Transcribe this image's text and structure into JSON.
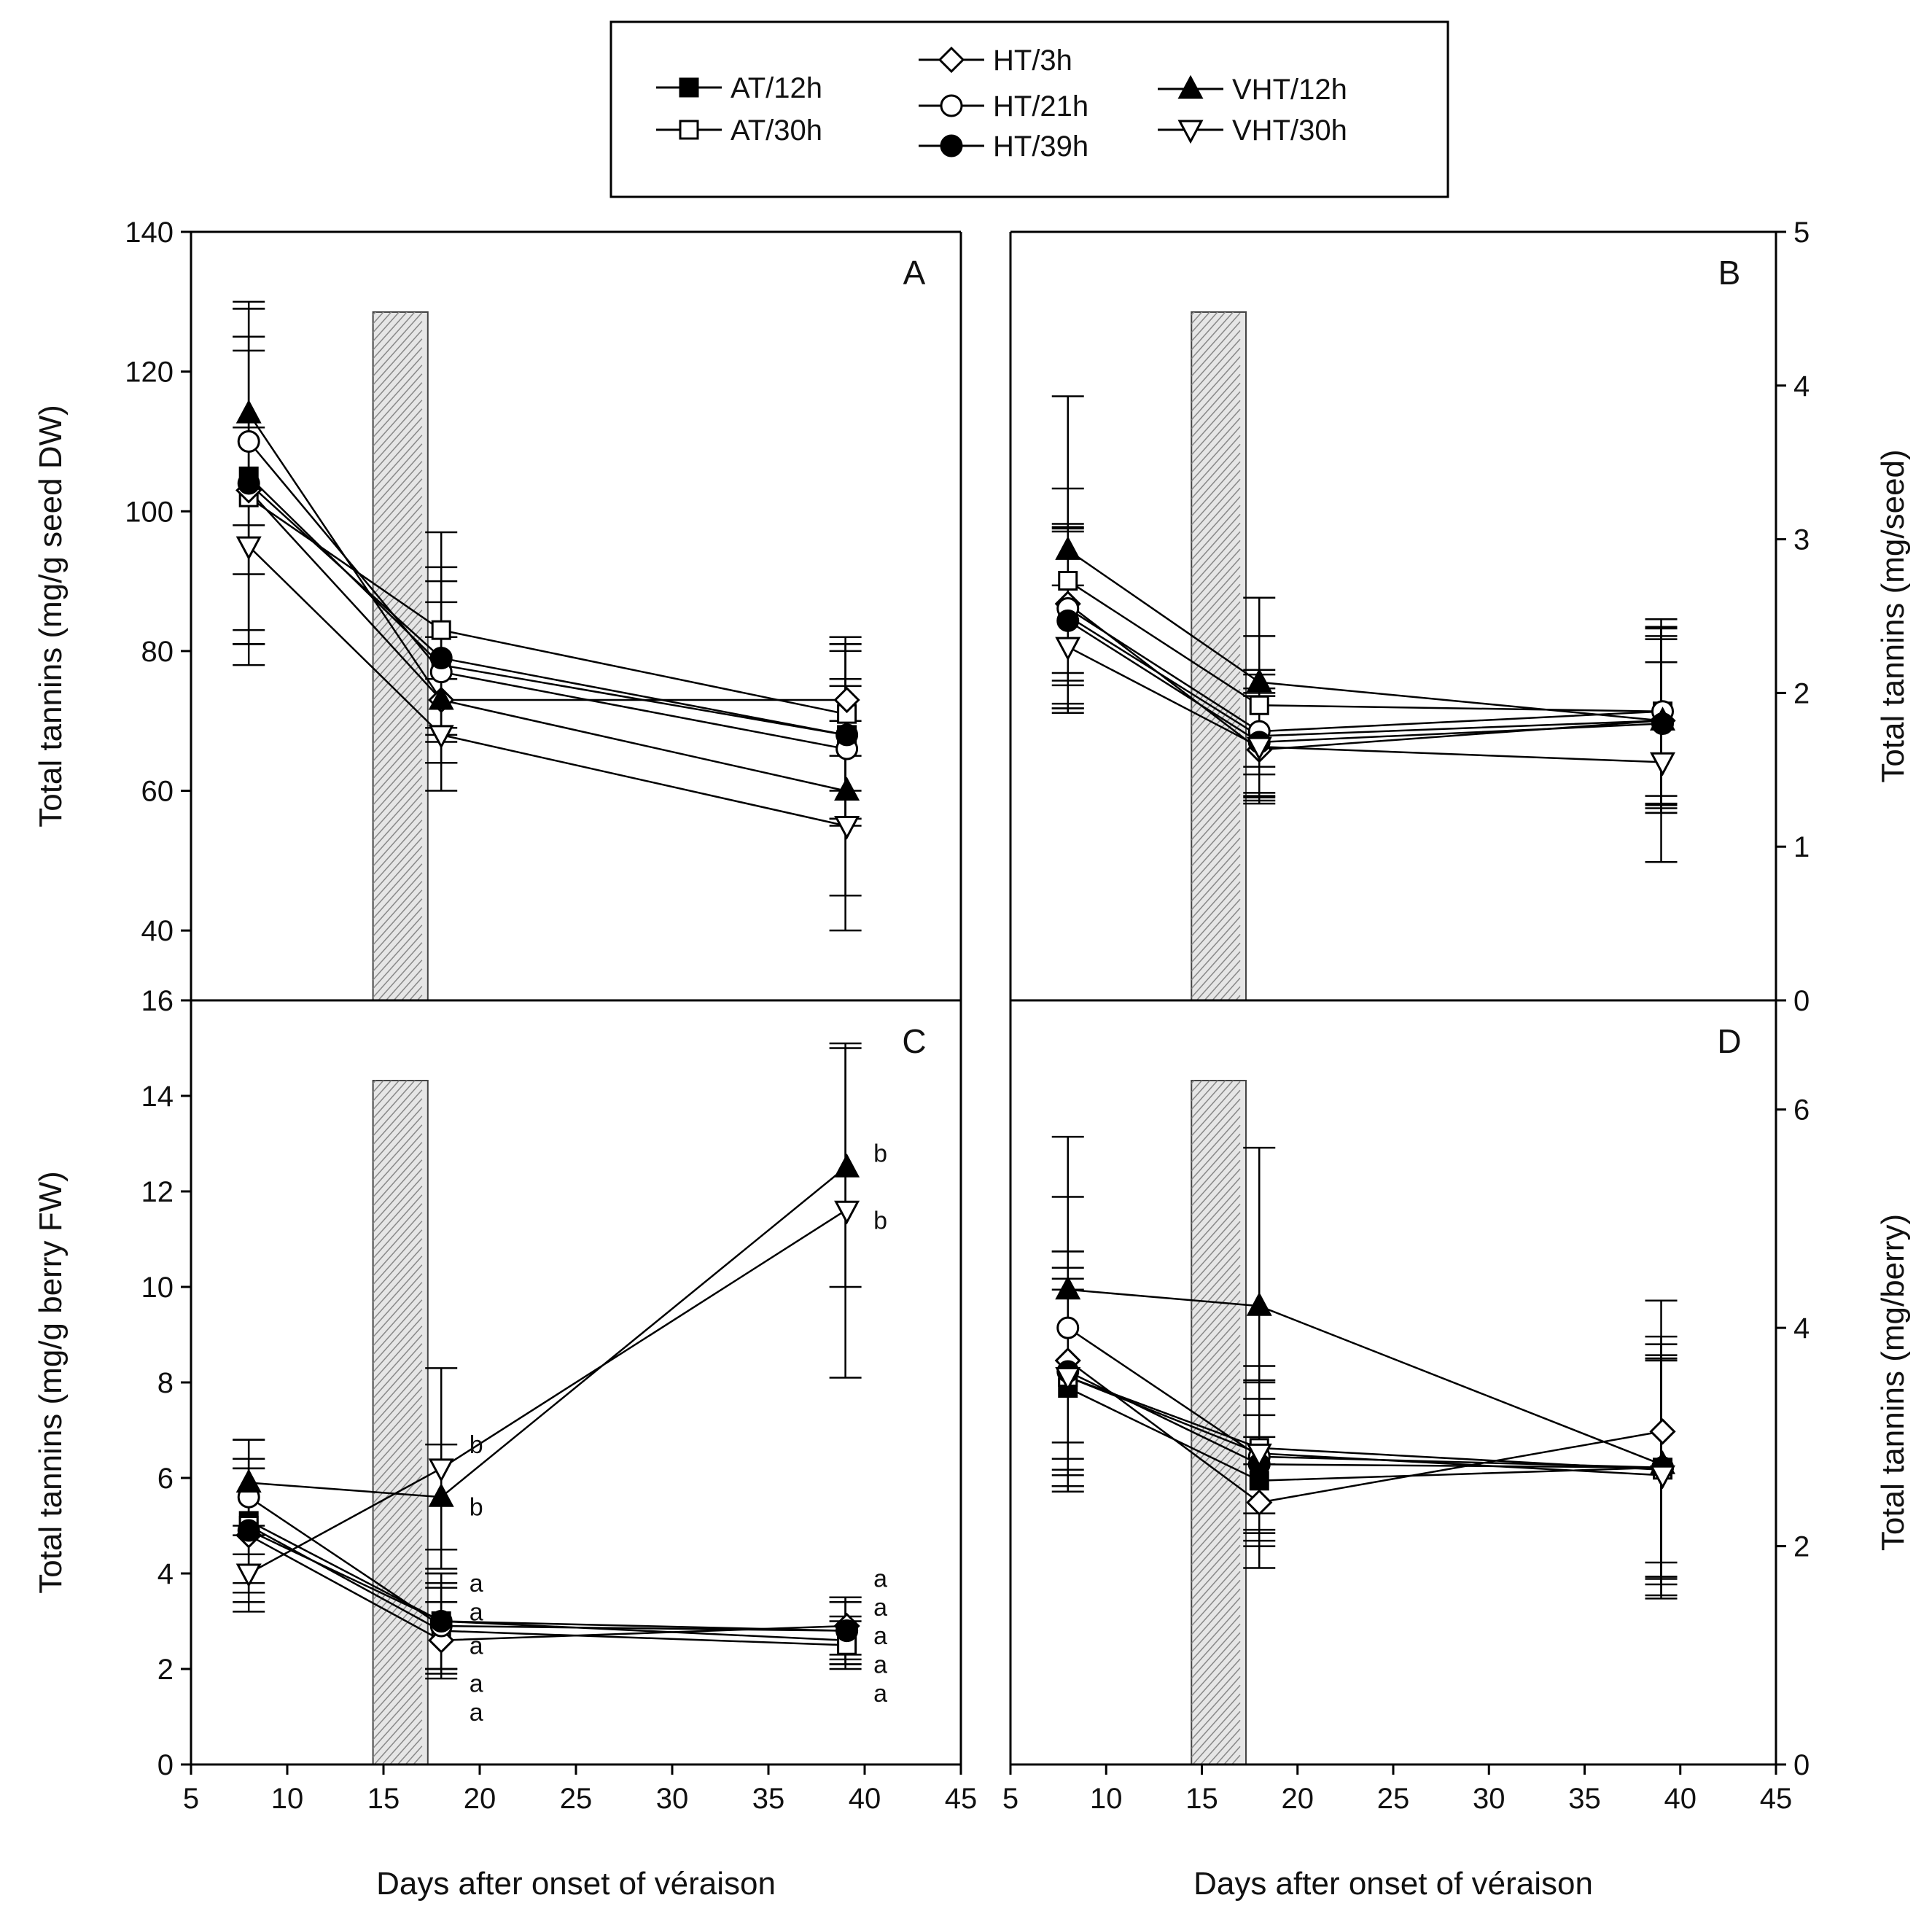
{
  "legend": {
    "entries": [
      {
        "label": "AT/12h",
        "marker": "square",
        "filled": true
      },
      {
        "label": "AT/30h",
        "marker": "square",
        "filled": false
      },
      {
        "label": "HT/3h",
        "marker": "diamond",
        "filled": false
      },
      {
        "label": "HT/21h",
        "marker": "circle",
        "filled": false
      },
      {
        "label": "HT/39h",
        "marker": "circle",
        "filled": true
      },
      {
        "label": "VHT/12h",
        "marker": "triangle-up",
        "filled": true
      },
      {
        "label": "VHT/30h",
        "marker": "triangle-down",
        "filled": false
      }
    ]
  },
  "shading": {
    "x_range": [
      14,
      17
    ],
    "description_text": ""
  },
  "chart_data": [
    {
      "panel": "A",
      "type": "line",
      "ylabel": "Total tannins (mg/g seed DW)",
      "xlabel": "",
      "xlim": [
        5,
        45
      ],
      "ylim": [
        30,
        140
      ],
      "yticks": [
        40,
        60,
        80,
        100,
        120,
        140
      ],
      "xticks": [],
      "x": [
        8,
        18,
        39
      ],
      "series": [
        {
          "name": "AT/12h",
          "values": [
            105,
            78,
            68
          ],
          "errors": [
            24,
            14,
            13
          ]
        },
        {
          "name": "AT/30h",
          "values": [
            102,
            83,
            71
          ],
          "errors": [
            21,
            14,
            11
          ]
        },
        {
          "name": "HT/3h",
          "values": [
            103,
            73,
            73
          ],
          "errors": [
            22,
            9,
            8
          ]
        },
        {
          "name": "HT/21h",
          "values": [
            110,
            77,
            66
          ],
          "errors": [
            19,
            10,
            10
          ]
        },
        {
          "name": "HT/39h",
          "values": [
            104,
            79,
            68
          ],
          "errors": [
            21,
            11,
            12
          ]
        },
        {
          "name": "VHT/12h",
          "values": [
            114,
            73,
            60
          ],
          "errors": [
            16,
            9,
            15
          ]
        },
        {
          "name": "VHT/30h",
          "values": [
            95,
            68,
            55
          ],
          "errors": [
            17,
            8,
            15
          ]
        }
      ]
    },
    {
      "panel": "B",
      "type": "line",
      "ylabel": "Total tannins (mg/seed)",
      "xlabel": "",
      "xlim": [
        5,
        45
      ],
      "ylim": [
        0,
        5
      ],
      "yticks": [
        0,
        1,
        2,
        3,
        4,
        5
      ],
      "xticks": [],
      "x": [
        8,
        18,
        39
      ],
      "series": [
        {
          "name": "AT/12h",
          "values": [
            2.5,
            1.72,
            1.82
          ],
          "errors": [
            0.6,
            0.4,
            0.6
          ]
        },
        {
          "name": "AT/30h",
          "values": [
            2.73,
            1.92,
            1.88
          ],
          "errors": [
            0.6,
            0.45,
            0.6
          ]
        },
        {
          "name": "HT/3h",
          "values": [
            2.58,
            1.63,
            1.82
          ],
          "errors": [
            0.5,
            0.35,
            0.6
          ]
        },
        {
          "name": "HT/21h",
          "values": [
            2.55,
            1.75,
            1.88
          ],
          "errors": [
            0.5,
            0.4,
            0.55
          ]
        },
        {
          "name": "HT/39h",
          "values": [
            2.47,
            1.68,
            1.8
          ],
          "errors": [
            0.6,
            0.35,
            0.55
          ]
        },
        {
          "name": "VHT/12h",
          "values": [
            2.93,
            2.07,
            1.82
          ],
          "errors": [
            1.0,
            0.55,
            0.55
          ]
        },
        {
          "name": "VHT/30h",
          "values": [
            2.3,
            1.65,
            1.55
          ],
          "errors": [
            0.4,
            0.35,
            0.65
          ]
        }
      ]
    },
    {
      "panel": "C",
      "type": "line",
      "ylabel": "Total tannins (mg/g berry FW)",
      "xlabel": "Days after onset of véraison",
      "xlim": [
        5,
        45
      ],
      "ylim": [
        0,
        16
      ],
      "yticks": [
        0,
        2,
        4,
        6,
        8,
        10,
        12,
        14,
        16
      ],
      "xticks": [
        5,
        10,
        15,
        20,
        25,
        30,
        35,
        40,
        45
      ],
      "x": [
        8,
        18,
        39
      ],
      "series": [
        {
          "name": "AT/12h",
          "values": [
            5.1,
            3.0,
            2.6
          ],
          "errors": [
            1.3,
            1.0,
            0.5
          ]
        },
        {
          "name": "AT/30h",
          "values": [
            5.0,
            2.8,
            2.5
          ],
          "errors": [
            1.4,
            0.9,
            0.5
          ]
        },
        {
          "name": "HT/3h",
          "values": [
            4.8,
            2.6,
            2.9
          ],
          "errors": [
            1.4,
            0.8,
            0.6
          ]
        },
        {
          "name": "HT/21h",
          "values": [
            5.6,
            2.9,
            2.8
          ],
          "errors": [
            1.2,
            0.9,
            0.6
          ]
        },
        {
          "name": "HT/39h",
          "values": [
            4.9,
            3.0,
            2.8
          ],
          "errors": [
            1.3,
            1.0,
            0.7
          ]
        },
        {
          "name": "VHT/12h",
          "values": [
            5.9,
            5.6,
            12.5
          ],
          "errors": [
            0.9,
            1.1,
            2.5
          ]
        },
        {
          "name": "VHT/30h",
          "values": [
            4.0,
            6.2,
            11.6
          ],
          "errors": [
            0.8,
            2.1,
            3.5
          ]
        }
      ],
      "annotations": [
        {
          "x": 18,
          "y": 6.7,
          "text": "b"
        },
        {
          "x": 18,
          "y": 5.4,
          "text": "b"
        },
        {
          "x": 18,
          "y": 3.8,
          "text": "a"
        },
        {
          "x": 18,
          "y": 3.2,
          "text": "a"
        },
        {
          "x": 18,
          "y": 2.5,
          "text": "a"
        },
        {
          "x": 18,
          "y": 1.7,
          "text": "a"
        },
        {
          "x": 18,
          "y": 1.1,
          "text": "a"
        },
        {
          "x": 39,
          "y": 12.8,
          "text": "b"
        },
        {
          "x": 39,
          "y": 11.4,
          "text": "b"
        },
        {
          "x": 39,
          "y": 3.9,
          "text": "a"
        },
        {
          "x": 39,
          "y": 3.3,
          "text": "a"
        },
        {
          "x": 39,
          "y": 2.7,
          "text": "a"
        },
        {
          "x": 39,
          "y": 2.1,
          "text": "a"
        },
        {
          "x": 39,
          "y": 1.5,
          "text": "a"
        }
      ]
    },
    {
      "panel": "D",
      "type": "line",
      "ylabel": "Total tannins (mg/berry)",
      "xlabel": "Days after onset of véraison",
      "xlim": [
        5,
        45
      ],
      "ylim": [
        0,
        7
      ],
      "yticks": [
        0,
        2,
        4,
        6
      ],
      "xticks": [
        5,
        10,
        15,
        20,
        25,
        30,
        35,
        40,
        45
      ],
      "x": [
        8,
        18,
        39
      ],
      "series": [
        {
          "name": "AT/12h",
          "values": [
            3.45,
            2.6,
            2.72
          ],
          "errors": [
            0.9,
            0.6,
            1.0
          ]
        },
        {
          "name": "AT/30h",
          "values": [
            3.55,
            2.9,
            2.7
          ],
          "errors": [
            1.0,
            0.6,
            1.0
          ]
        },
        {
          "name": "HT/3h",
          "values": [
            3.7,
            2.4,
            3.05
          ],
          "errors": [
            1.0,
            0.6,
            1.2
          ]
        },
        {
          "name": "HT/21h",
          "values": [
            4.0,
            2.82,
            2.72
          ],
          "errors": [
            1.2,
            0.7,
            1.2
          ]
        },
        {
          "name": "HT/39h",
          "values": [
            3.6,
            2.75,
            2.72
          ],
          "errors": [
            1.1,
            0.6,
            1.0
          ]
        },
        {
          "name": "VHT/12h",
          "values": [
            4.35,
            4.2,
            2.75
          ],
          "errors": [
            1.4,
            1.45,
            1.1
          ]
        },
        {
          "name": "VHT/30h",
          "values": [
            3.55,
            2.85,
            2.65
          ],
          "errors": [
            0.9,
            0.8,
            1.1
          ]
        }
      ]
    }
  ]
}
